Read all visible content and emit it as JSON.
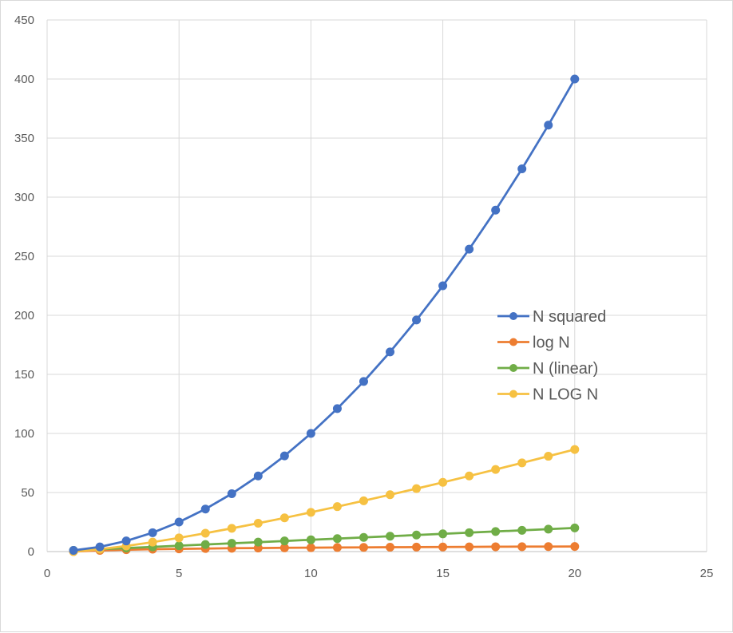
{
  "chart_data": {
    "type": "line",
    "title": "",
    "xlabel": "",
    "ylabel": "",
    "xlim": [
      0,
      25
    ],
    "ylim": [
      0,
      450
    ],
    "x_ticks": [
      0,
      5,
      10,
      15,
      20,
      25
    ],
    "y_ticks": [
      0,
      50,
      100,
      150,
      200,
      250,
      300,
      350,
      400,
      450
    ],
    "grid": true,
    "legend_position": "right",
    "x": [
      1,
      2,
      3,
      4,
      5,
      6,
      7,
      8,
      9,
      10,
      11,
      12,
      13,
      14,
      15,
      16,
      17,
      18,
      19,
      20
    ],
    "series": [
      {
        "name": "N squared",
        "color": "#4472c4",
        "values": [
          1,
          4,
          9,
          16,
          25,
          36,
          49,
          64,
          81,
          100,
          121,
          144,
          169,
          196,
          225,
          256,
          289,
          324,
          361,
          400
        ]
      },
      {
        "name": "log N",
        "color": "#ed7d31",
        "values": [
          0,
          1,
          1.58,
          2,
          2.32,
          2.58,
          2.81,
          3,
          3.17,
          3.32,
          3.46,
          3.58,
          3.7,
          3.81,
          3.91,
          4,
          4.09,
          4.17,
          4.25,
          4.32
        ]
      },
      {
        "name": "N (linear)",
        "color": "#70ad47",
        "values": [
          1,
          2,
          3,
          4,
          5,
          6,
          7,
          8,
          9,
          10,
          11,
          12,
          13,
          14,
          15,
          16,
          17,
          18,
          19,
          20
        ]
      },
      {
        "name": "N LOG N",
        "color": "#f6c142",
        "values": [
          0,
          2,
          4.75,
          8,
          11.61,
          15.51,
          19.65,
          24,
          28.53,
          33.22,
          38.05,
          43.02,
          48.11,
          53.3,
          58.6,
          64,
          69.49,
          75.06,
          80.71,
          86.44
        ]
      }
    ]
  }
}
